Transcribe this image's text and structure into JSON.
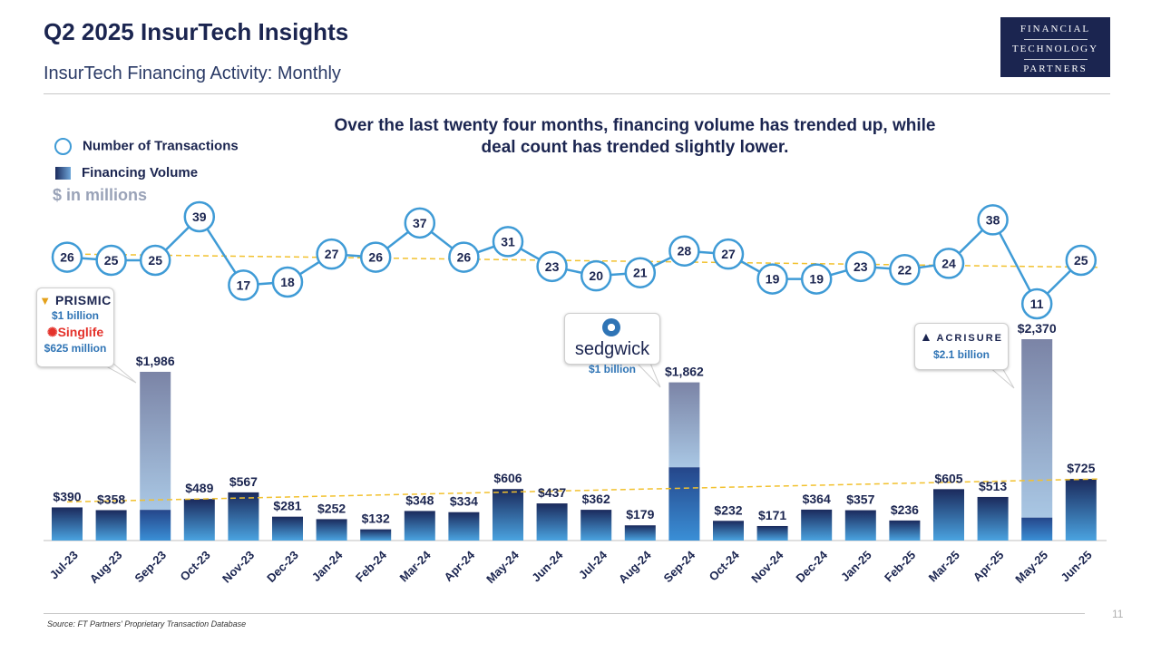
{
  "header": {
    "title": "Q2 2025 InsurTech Insights",
    "subtitle": "InsurTech Financing Activity: Monthly",
    "logo_line1": "FINANCIAL",
    "logo_line2": "TECHNOLOGY",
    "logo_line3": "PARTNERS"
  },
  "headline": "Over the last twenty four months, financing volume has trended up, while deal count has trended slightly lower.",
  "legend": {
    "transactions": "Number of Transactions",
    "volume": "Financing Volume",
    "units": "$ in millions"
  },
  "callouts": {
    "sep23": {
      "company1": "PRISMIC",
      "amount1": "$1 billion",
      "company2": "Singlife",
      "amount2": "$625 million"
    },
    "sep24": {
      "company": "sedgwick",
      "amount": "$1 billion"
    },
    "may25": {
      "company": "ACRISURE",
      "amount": "$2.1 billion"
    }
  },
  "colors": {
    "bar_dark": "#1b2a5c",
    "bar_light": "#4aa3e0",
    "highlight_top": "#7b84a6",
    "highlight_bottom": "#2f7cc6",
    "circle_stroke": "#3f9bd6",
    "trend": "#f2c12e",
    "text": "#1b2550"
  },
  "footer": {
    "source": "Source: FT Partners' Proprietary Transaction Database",
    "page": "11"
  },
  "chart_data": {
    "type": "bar",
    "categories": [
      "Jul-23",
      "Aug-23",
      "Sep-23",
      "Oct-23",
      "Nov-23",
      "Dec-23",
      "Jan-24",
      "Feb-24",
      "Mar-24",
      "Apr-24",
      "May-24",
      "Jun-24",
      "Jul-24",
      "Aug-24",
      "Sep-24",
      "Oct-24",
      "Nov-24",
      "Dec-24",
      "Jan-25",
      "Feb-25",
      "Mar-25",
      "Apr-25",
      "May-25",
      "Jun-25"
    ],
    "series": [
      {
        "name": "Financing Volume",
        "type": "bar",
        "values": [
          390,
          358,
          1986,
          489,
          567,
          281,
          252,
          132,
          348,
          334,
          606,
          437,
          362,
          179,
          1862,
          232,
          171,
          364,
          357,
          236,
          605,
          513,
          2370,
          725
        ],
        "labels": [
          "$390",
          "$358",
          "$1,986",
          "$489",
          "$567",
          "$281",
          "$252",
          "$132",
          "$348",
          "$334",
          "$606",
          "$437",
          "$362",
          "$179",
          "$1,862",
          "$232",
          "$171",
          "$364",
          "$357",
          "$236",
          "$605",
          "$513",
          "$2,370",
          "$725"
        ]
      },
      {
        "name": "Number of Transactions",
        "type": "line",
        "values": [
          26,
          25,
          25,
          39,
          17,
          18,
          27,
          26,
          37,
          26,
          31,
          23,
          20,
          21,
          28,
          27,
          19,
          19,
          23,
          22,
          24,
          38,
          11,
          25
        ]
      }
    ],
    "highlight_bars": {
      "Sep-23": 1625,
      "Sep-24": 1000,
      "May-25": 2100
    },
    "trendlines": [
      "Financing Volume",
      "Number of Transactions"
    ],
    "ylim": [
      0,
      2370
    ]
  }
}
